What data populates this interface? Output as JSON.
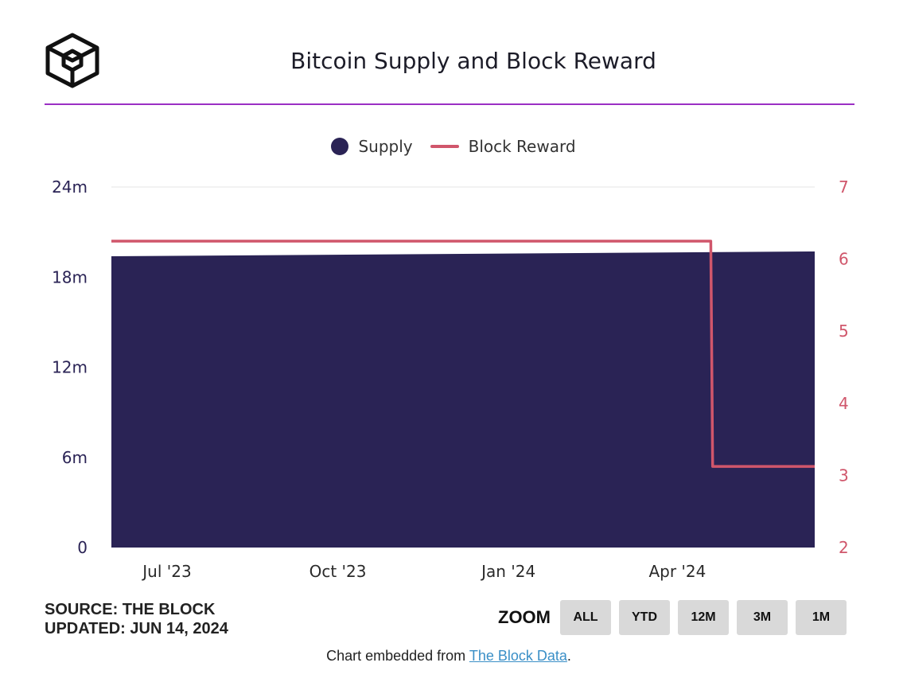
{
  "header": {
    "title": "Bitcoin Supply and Block Reward"
  },
  "legend": {
    "supply_label": "Supply",
    "block_reward_label": "Block Reward"
  },
  "colors": {
    "supply": "#2a2355",
    "block_reward": "#d0566b",
    "accent_rule": "#9b2fc4",
    "link": "#3a8fc7"
  },
  "source": {
    "line1": "SOURCE: THE BLOCK",
    "line2": "UPDATED: JUN 14, 2024"
  },
  "zoom": {
    "label": "ZOOM",
    "buttons": [
      "ALL",
      "YTD",
      "12M",
      "3M",
      "1M"
    ]
  },
  "footer": {
    "prefix": "Chart embedded from ",
    "link_text": "The Block Data",
    "suffix": "."
  },
  "chart_data": {
    "type": "area",
    "title": "Bitcoin Supply and Block Reward",
    "x_tick_labels": [
      "Jul '23",
      "Oct '23",
      "Jan '24",
      "Apr '24"
    ],
    "x_range": [
      "2023-06-01",
      "2024-06-14"
    ],
    "x_ticks": [
      "2023-07-01",
      "2023-10-01",
      "2024-01-01",
      "2024-04-01"
    ],
    "y_left": {
      "ticks": [
        0,
        6,
        12,
        18,
        24
      ],
      "tick_labels": [
        "0",
        "6m",
        "12m",
        "18m",
        "24m"
      ],
      "range": [
        0,
        24
      ],
      "unit": "m"
    },
    "y_right": {
      "ticks": [
        2,
        3,
        4,
        5,
        6,
        7
      ],
      "tick_labels": [
        "2",
        "3",
        "4",
        "5",
        "6",
        "7"
      ],
      "range": [
        2,
        7
      ]
    },
    "grid": "top line only",
    "legend_position": "top-center",
    "series": [
      {
        "name": "Supply",
        "type": "area",
        "axis": "left",
        "x": [
          "2023-06-01",
          "2024-06-14"
        ],
        "y": [
          19.39,
          19.71
        ]
      },
      {
        "name": "Block Reward",
        "type": "step-line",
        "axis": "right",
        "x": [
          "2023-06-01",
          "2024-04-19",
          "2024-04-20",
          "2024-06-14"
        ],
        "y": [
          6.25,
          6.25,
          3.125,
          3.125
        ]
      }
    ]
  }
}
